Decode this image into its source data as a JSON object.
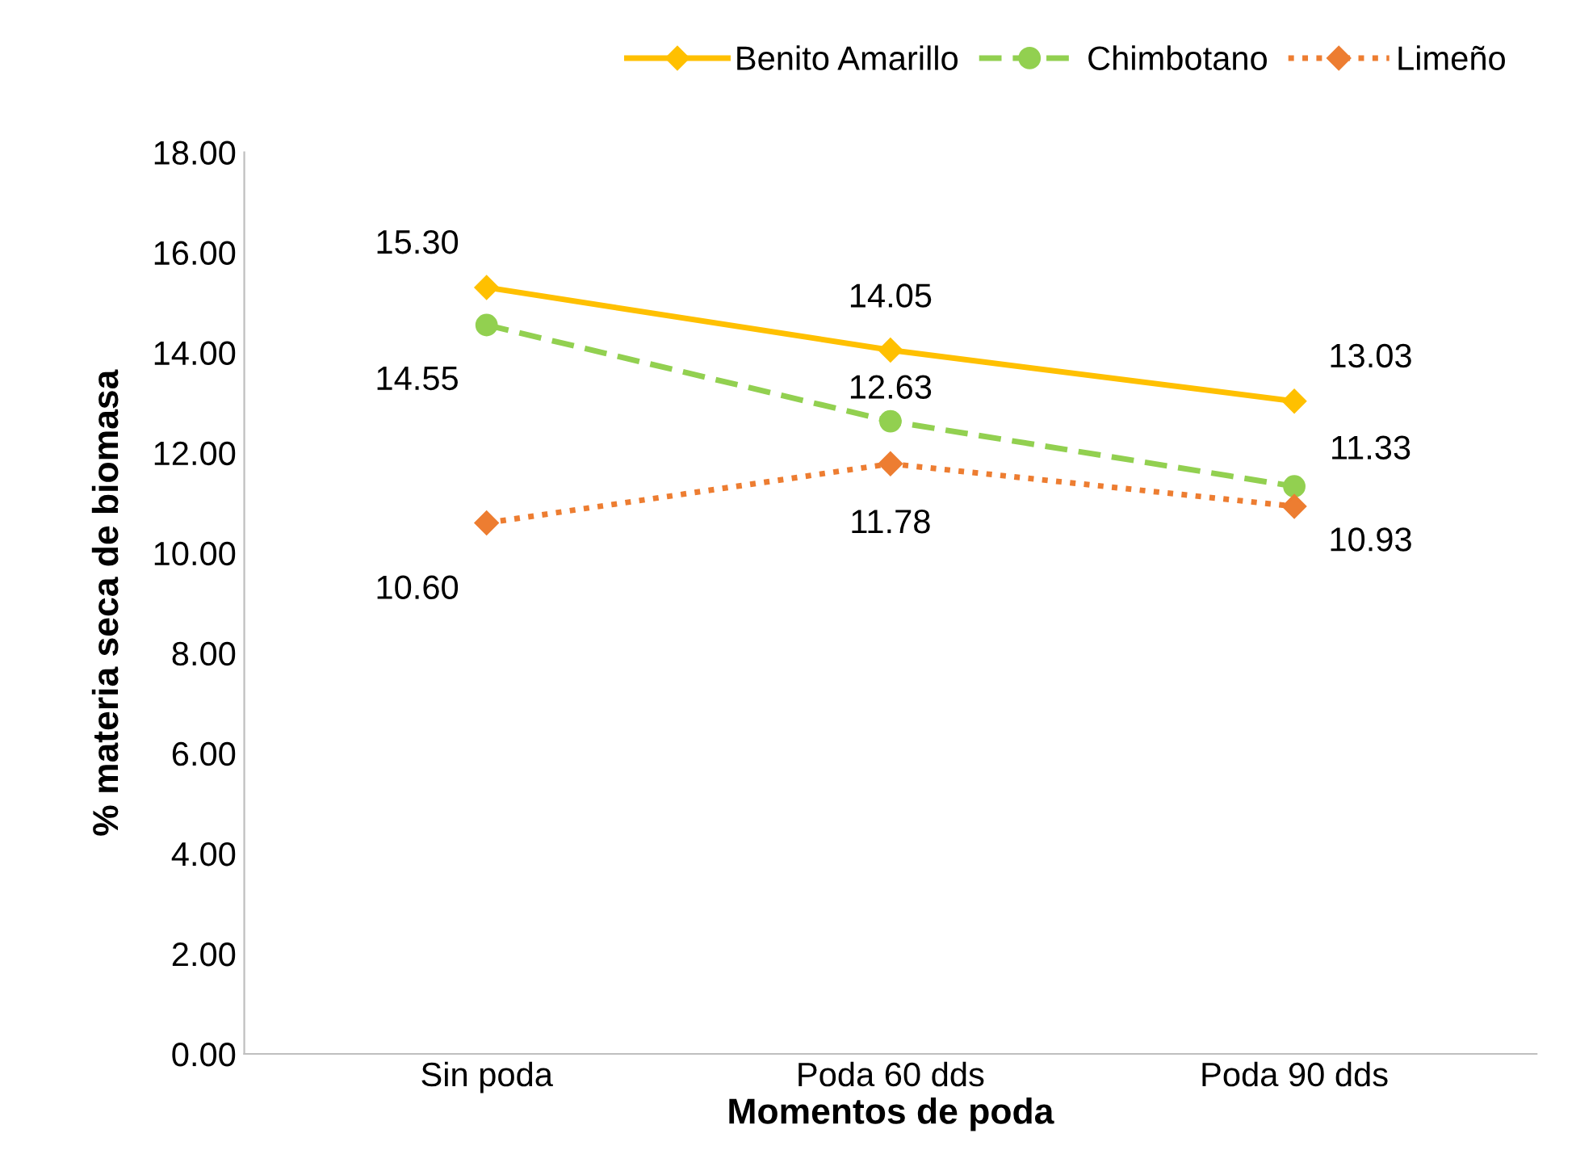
{
  "chart_data": {
    "type": "line",
    "xlabel": "Momentos de poda",
    "ylabel": "% materia seca de biomasa",
    "categories": [
      "Sin poda",
      "Poda 60 dds",
      "Poda 90 dds"
    ],
    "series": [
      {
        "name": "Benito Amarillo",
        "color": "#ffc000",
        "values": [
          15.3,
          14.05,
          13.03
        ],
        "value_labels": [
          "15.30",
          "14.05",
          "13.03"
        ],
        "marker": "diamond",
        "line_style": "solid"
      },
      {
        "name": "Chimbotano",
        "color": "#92d050",
        "values": [
          14.55,
          12.63,
          11.33
        ],
        "value_labels": [
          "14.55",
          "12.63",
          "11.33"
        ],
        "marker": "circle",
        "line_style": "dashed"
      },
      {
        "name": "Limeño",
        "color": "#ed7d31",
        "values": [
          10.6,
          11.78,
          10.93
        ],
        "value_labels": [
          "10.60",
          "11.78",
          "10.93"
        ],
        "marker": "diamond",
        "line_style": "dotted"
      }
    ],
    "ylim": [
      0,
      18
    ],
    "yticks": [
      {
        "value": 0,
        "label": "0.00"
      },
      {
        "value": 2,
        "label": "2.00"
      },
      {
        "value": 4,
        "label": "4.00"
      },
      {
        "value": 6,
        "label": "6.00"
      },
      {
        "value": 8,
        "label": "8.00"
      },
      {
        "value": 10,
        "label": "10.00"
      },
      {
        "value": 12,
        "label": "12.00"
      },
      {
        "value": 14,
        "label": "14.00"
      },
      {
        "value": 16,
        "label": "16.00"
      },
      {
        "value": 18,
        "label": "18.00"
      }
    ],
    "grid": false,
    "legend": "top right"
  }
}
